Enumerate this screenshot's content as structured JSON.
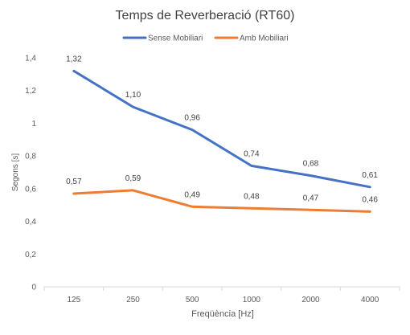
{
  "chart_data": {
    "type": "line",
    "title": "Temps de Reverberació (RT60)",
    "xlabel": "Freqüència [Hz]",
    "ylabel": "Segons [s]",
    "categories": [
      "125",
      "250",
      "500",
      "1000",
      "2000",
      "4000"
    ],
    "ylim": [
      0,
      1.4
    ],
    "yticks": [
      "0",
      "0,2",
      "0,4",
      "0,6",
      "0,8",
      "1",
      "1,2",
      "1,4"
    ],
    "grid": false,
    "legend_position": "top",
    "series": [
      {
        "name": "Sense Mobiliari",
        "color": "#4472C4",
        "values": [
          1.32,
          1.1,
          0.96,
          0.74,
          0.68,
          0.61
        ],
        "labels": [
          "1,32",
          "1,10",
          "0,96",
          "0,74",
          "0,68",
          "0,61"
        ]
      },
      {
        "name": "Amb Mobiliari",
        "color": "#ED7D31",
        "values": [
          0.57,
          0.59,
          0.49,
          0.48,
          0.47,
          0.46
        ],
        "labels": [
          "0,57",
          "0,59",
          "0,49",
          "0,48",
          "0,47",
          "0,46"
        ]
      }
    ]
  }
}
